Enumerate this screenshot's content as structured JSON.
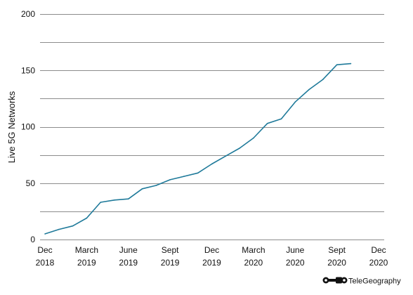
{
  "chart_data": {
    "type": "line",
    "title": "",
    "ylabel": "Live 5G Networks",
    "xlabel": "",
    "ylim": [
      0,
      200
    ],
    "yticks": [
      0,
      50,
      100,
      150,
      200
    ],
    "xticks": [
      {
        "line1": "Dec",
        "line2": "2018",
        "month": 0
      },
      {
        "line1": "March",
        "line2": "2019",
        "month": 3
      },
      {
        "line1": "June",
        "line2": "2019",
        "month": 6
      },
      {
        "line1": "Sept",
        "line2": "2019",
        "month": 9
      },
      {
        "line1": "Dec",
        "line2": "2019",
        "month": 12
      },
      {
        "line1": "March",
        "line2": "2020",
        "month": 15
      },
      {
        "line1": "June",
        "line2": "2020",
        "month": 18
      },
      {
        "line1": "Sept",
        "line2": "2020",
        "month": 21
      },
      {
        "line1": "Dec",
        "line2": "2020",
        "month": 24
      }
    ],
    "grid": "horizontal",
    "series": [
      {
        "color": "#1f7a9a",
        "points": [
          {
            "month": 0,
            "value": 5
          },
          {
            "month": 1,
            "value": 9
          },
          {
            "month": 2,
            "value": 12
          },
          {
            "month": 3,
            "value": 19
          },
          {
            "month": 4,
            "value": 33
          },
          {
            "month": 5,
            "value": 35
          },
          {
            "month": 6,
            "value": 36
          },
          {
            "month": 7,
            "value": 45
          },
          {
            "month": 8,
            "value": 48
          },
          {
            "month": 9,
            "value": 53
          },
          {
            "month": 10,
            "value": 56
          },
          {
            "month": 11,
            "value": 59
          },
          {
            "month": 12,
            "value": 67
          },
          {
            "month": 13,
            "value": 74
          },
          {
            "month": 14,
            "value": 81
          },
          {
            "month": 15,
            "value": 90
          },
          {
            "month": 16,
            "value": 103
          },
          {
            "month": 17,
            "value": 107
          },
          {
            "month": 18,
            "value": 122
          },
          {
            "month": 19,
            "value": 133
          },
          {
            "month": 20,
            "value": 142
          },
          {
            "month": 21,
            "value": 155
          },
          {
            "month": 22,
            "value": 156
          }
        ]
      }
    ]
  },
  "brand": {
    "name": "TeleGeography",
    "logo_icon": "telegeography-logo-icon"
  }
}
